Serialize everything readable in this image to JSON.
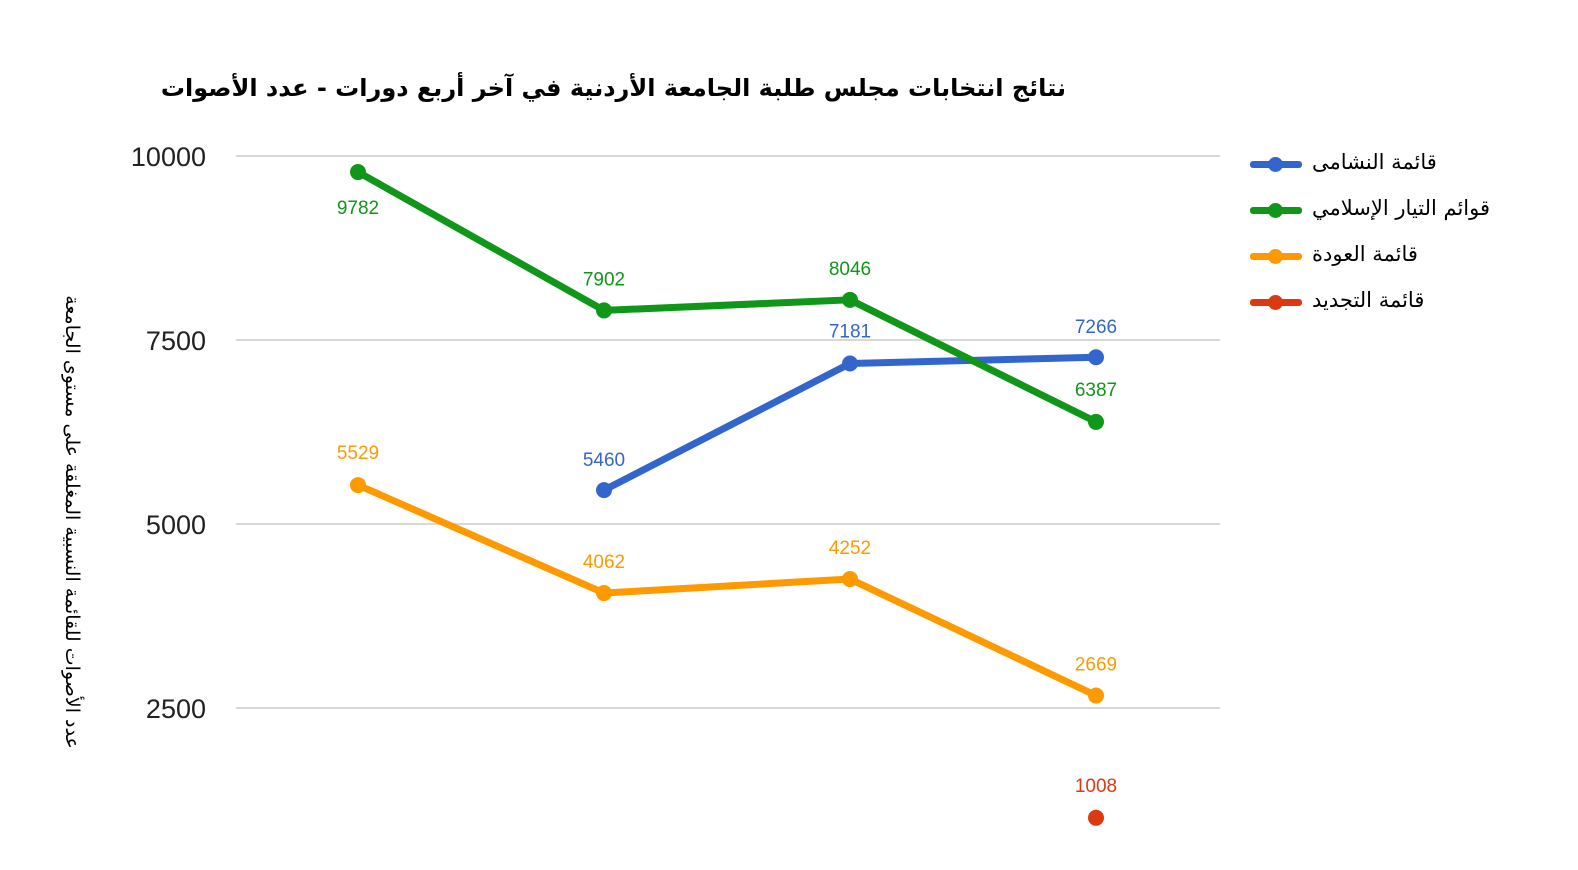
{
  "chart_data": {
    "type": "line",
    "title": "نتائج انتخابات مجلس طلبة الجامعة الأردنية في آخر أربع دورات - عدد الأصوات",
    "ylabel": "عدد الأصوات للقائمة النسبية المغلقة على مستوى الجامعة",
    "xlabel": "",
    "x": [
      "",
      "",
      "",
      ""
    ],
    "ylim": [
      1000,
      10000
    ],
    "yticks": [
      "10000",
      "7500",
      "5000",
      "2500"
    ],
    "grid": true,
    "legend_position": "right",
    "series": [
      {
        "name": "قائمة النشامى",
        "color": "#3366cc",
        "values": [
          null,
          5460,
          7181,
          7266
        ]
      },
      {
        "name": "قوائم التيار الإسلامي",
        "color": "#109618",
        "values": [
          9782,
          7902,
          8046,
          6387
        ]
      },
      {
        "name": "قائمة العودة",
        "color": "#ff9900",
        "values": [
          5529,
          4062,
          4252,
          2669
        ]
      },
      {
        "name": "قائمة التجديد",
        "color": "#dc3912",
        "values": [
          null,
          null,
          null,
          1008
        ]
      }
    ]
  }
}
